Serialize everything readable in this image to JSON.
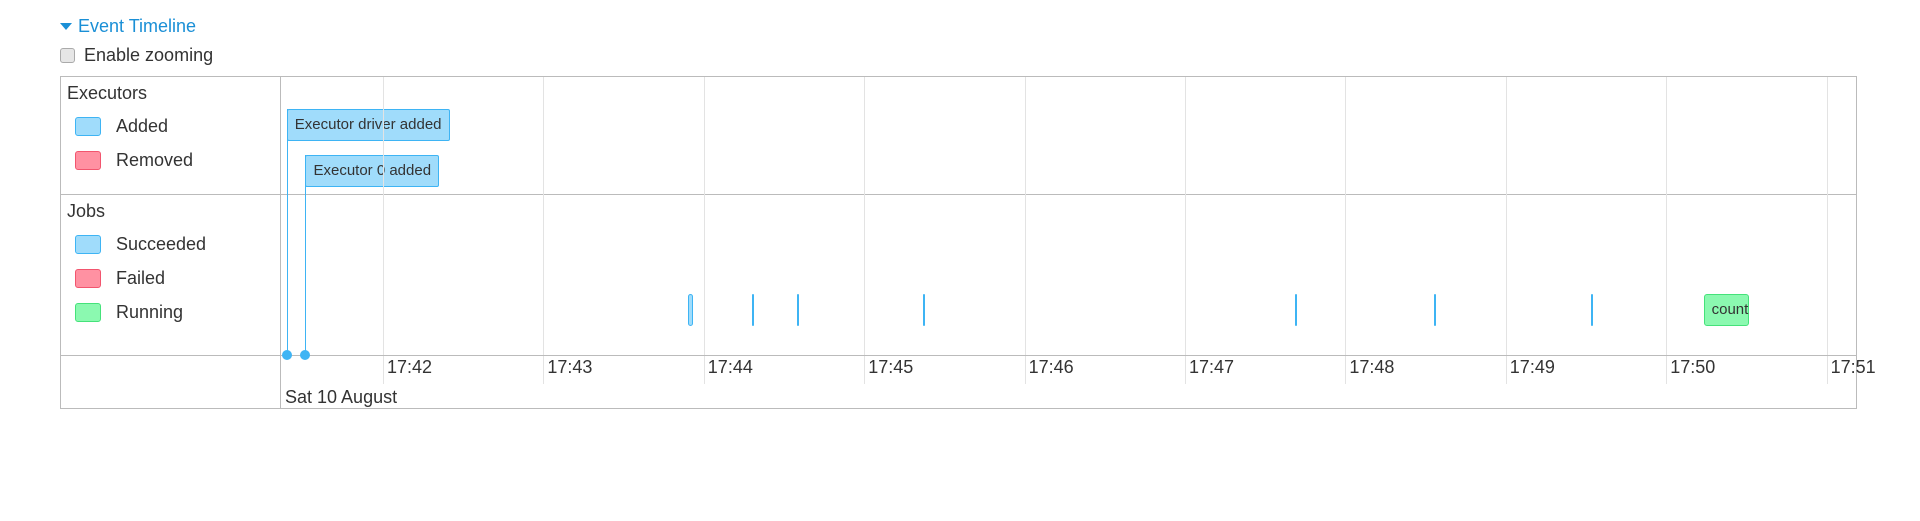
{
  "header": {
    "title": "Event Timeline",
    "zoom_label": "Enable zooming",
    "zoom_checked": false
  },
  "colors": {
    "added_fill": "#a0dcfb",
    "added_border": "#3eb4f4",
    "removed_fill": "#ff91a2",
    "removed_border": "#f2556e",
    "running_fill": "#8bf9b0",
    "running_border": "#45e27a",
    "title": "#1a8fd6"
  },
  "legend": {
    "executors": {
      "label": "Executors",
      "items": [
        {
          "label": "Added"
        },
        {
          "label": "Removed"
        }
      ]
    },
    "jobs": {
      "label": "Jobs",
      "items": [
        {
          "label": "Succeeded"
        },
        {
          "label": "Failed"
        },
        {
          "label": "Running"
        }
      ]
    }
  },
  "axis": {
    "ticks": [
      "17:42",
      "17:43",
      "17:44",
      "17:45",
      "17:46",
      "17:47",
      "17:48",
      "17:49",
      "17:50",
      "17:51"
    ],
    "date": "Sat 10 August"
  },
  "executor_events": [
    {
      "label": "Executor driver added",
      "time": "17:41:24",
      "status": "added"
    },
    {
      "label": "Executor 0 added",
      "time": "17:41:31",
      "status": "added"
    }
  ],
  "job_events": [
    {
      "start": "17:43:54",
      "end": "17:43:56",
      "status": "succeeded"
    },
    {
      "start": "17:44:18",
      "end": "17:44:18",
      "status": "succeeded"
    },
    {
      "start": "17:44:35",
      "end": "17:44:35",
      "status": "succeeded"
    },
    {
      "start": "17:45:22",
      "end": "17:45:22",
      "status": "succeeded"
    },
    {
      "start": "17:47:41",
      "end": "17:47:42",
      "status": "succeeded"
    },
    {
      "start": "17:48:33",
      "end": "17:48:33",
      "status": "succeeded"
    },
    {
      "start": "17:49:32",
      "end": "17:49:32",
      "status": "succeeded"
    },
    {
      "start": "17:50:14",
      "end": "17:50:31",
      "status": "running",
      "label": "count"
    }
  ]
}
